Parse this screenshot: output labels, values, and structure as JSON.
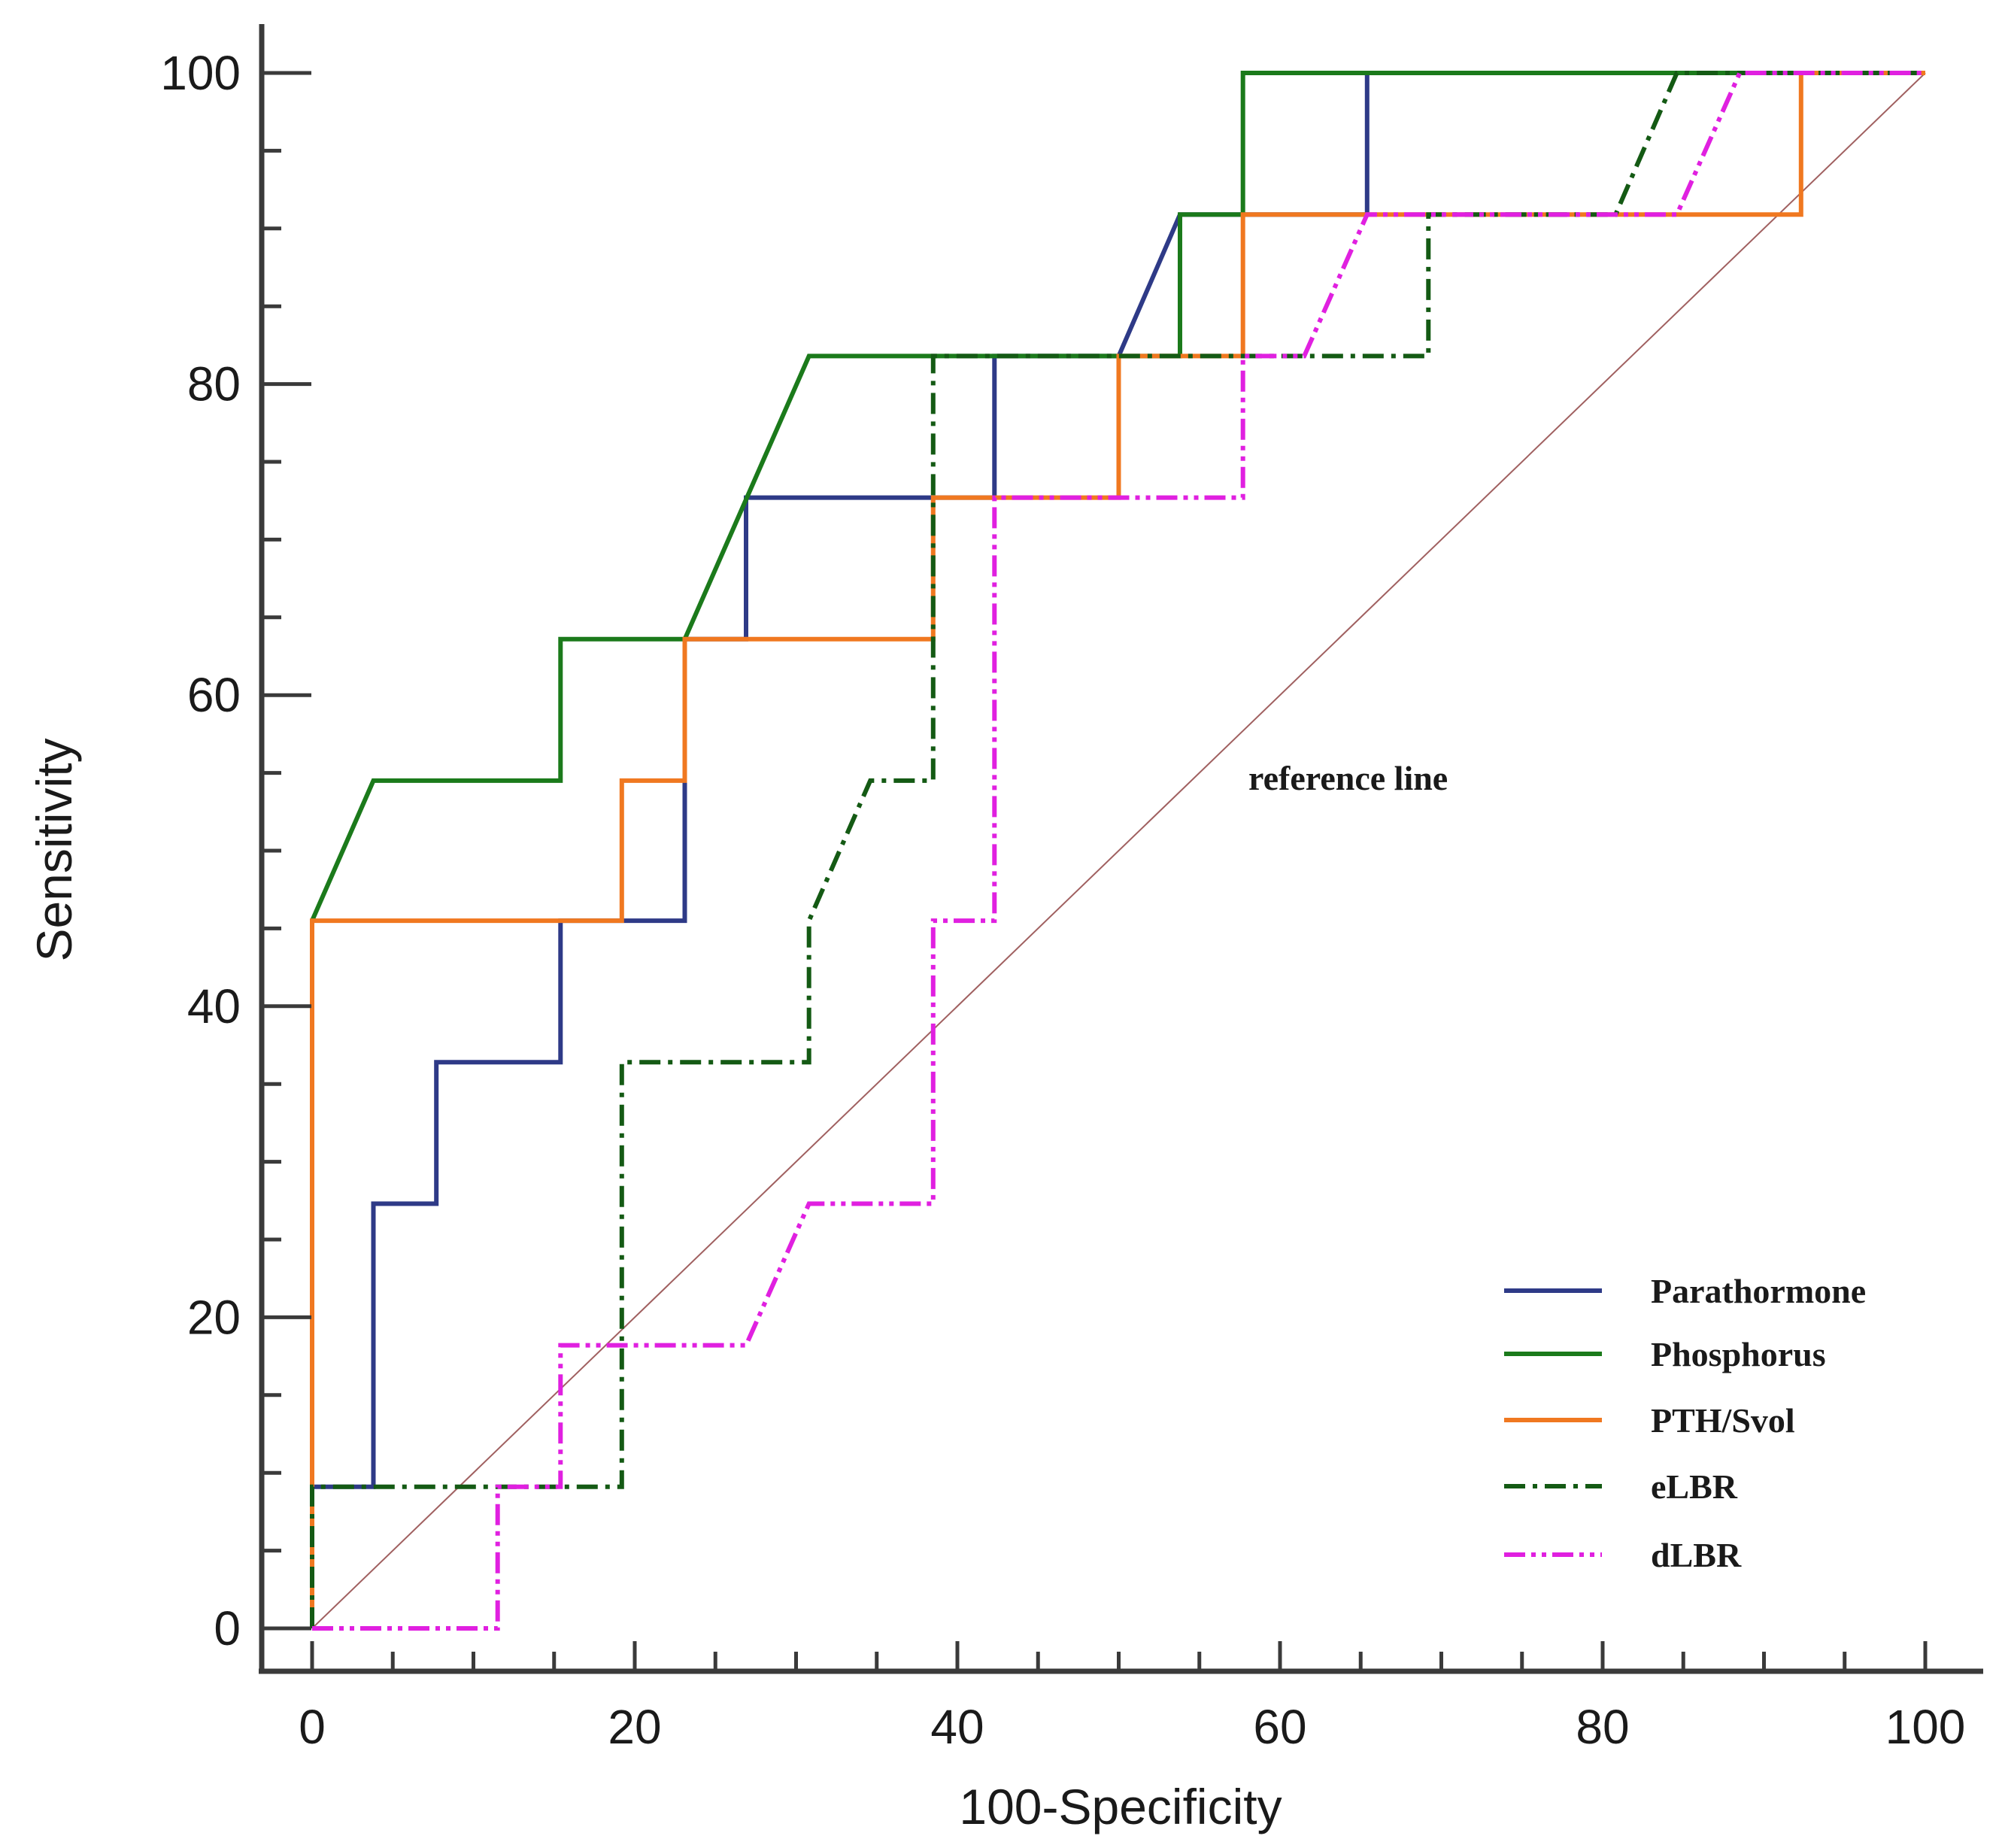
{
  "chart_data": {
    "type": "line",
    "title": "",
    "xlabel": "100-Specificity",
    "ylabel": "Sensitivity",
    "xlim": [
      0,
      100
    ],
    "ylim": [
      0,
      100
    ],
    "xticks": [
      "0",
      "20",
      "40",
      "60",
      "80",
      "100"
    ],
    "yticks": [
      "0",
      "20",
      "40",
      "60",
      "80",
      "100"
    ],
    "grid": false,
    "legend_position": "bottom-right",
    "annotation": "reference line",
    "reference_line": {
      "x": [
        0,
        100
      ],
      "y": [
        0,
        100
      ],
      "color": "#a06060"
    },
    "series": [
      {
        "name": "Parathormone",
        "color": "#2e3a87",
        "style": "solid",
        "x": [
          0,
          0,
          3.8,
          3.8,
          7.7,
          7.7,
          15.4,
          15.4,
          23.1,
          23.1,
          26.9,
          26.9,
          42.3,
          42.3,
          50,
          53.8,
          53.8,
          65.4,
          65.4,
          100
        ],
        "y": [
          0,
          9.1,
          9.1,
          27.3,
          27.3,
          36.4,
          36.4,
          45.5,
          45.5,
          63.6,
          63.6,
          72.7,
          72.7,
          81.8,
          81.8,
          90.9,
          90.9,
          90.9,
          100,
          100
        ]
      },
      {
        "name": "Phosphorus",
        "color": "#1b7a1b",
        "style": "solid",
        "x": [
          0,
          0,
          3.8,
          15.4,
          15.4,
          23.1,
          30.8,
          53.8,
          53.8,
          57.7,
          57.7,
          100
        ],
        "y": [
          0,
          45.5,
          54.5,
          54.5,
          63.6,
          63.6,
          81.8,
          81.8,
          90.9,
          90.9,
          100,
          100
        ]
      },
      {
        "name": "PTH/Svol",
        "color": "#f07820",
        "style": "solid",
        "x": [
          0,
          0,
          19.2,
          19.2,
          23.1,
          23.1,
          38.5,
          38.5,
          50,
          50,
          57.7,
          57.7,
          92.3,
          92.3,
          100
        ],
        "y": [
          0,
          45.5,
          45.5,
          54.5,
          54.5,
          63.6,
          63.6,
          72.7,
          72.7,
          81.8,
          81.8,
          90.9,
          90.9,
          100,
          100
        ]
      },
      {
        "name": "eLBR",
        "color": "#145a14",
        "style": "dashdot",
        "x": [
          0,
          0,
          19.2,
          19.2,
          30.8,
          30.8,
          34.6,
          38.5,
          38.5,
          69.2,
          69.2,
          80.8,
          84.6,
          100
        ],
        "y": [
          0,
          9.1,
          9.1,
          36.4,
          36.4,
          45.5,
          54.5,
          54.5,
          81.8,
          81.8,
          90.9,
          90.9,
          100,
          100
        ]
      },
      {
        "name": "dLBR",
        "color": "#e020e0",
        "style": "dashdotdot",
        "x": [
          0,
          11.5,
          11.5,
          15.4,
          15.4,
          26.9,
          30.8,
          38.5,
          38.5,
          42.3,
          42.3,
          57.7,
          57.7,
          61.5,
          65.4,
          84.6,
          88.5,
          100
        ],
        "y": [
          0,
          0,
          9.1,
          9.1,
          18.2,
          18.2,
          27.3,
          27.3,
          45.5,
          45.5,
          72.7,
          72.7,
          81.8,
          81.8,
          90.9,
          90.9,
          100,
          100
        ]
      }
    ]
  }
}
